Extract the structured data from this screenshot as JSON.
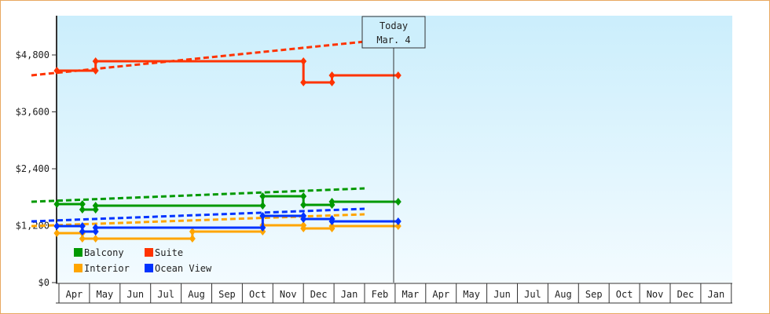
{
  "chart_data": {
    "type": "line",
    "title": "",
    "xlabel": "",
    "ylabel": "",
    "ylim": [
      0,
      5600
    ],
    "yticks": [
      "$0",
      "$1,200",
      "$2,400",
      "$3,600",
      "$4,800"
    ],
    "ytick_values": [
      0,
      1200,
      2400,
      3600,
      4800
    ],
    "xticks": [
      "Apr",
      "May",
      "Jun",
      "Jul",
      "Aug",
      "Sep",
      "Oct",
      "Nov",
      "Dec",
      "Jan",
      "Feb",
      "Mar",
      "Apr",
      "May",
      "Jun",
      "Jul",
      "Aug",
      "Sep",
      "Oct",
      "Nov",
      "Dec",
      "Jan"
    ],
    "grid": false,
    "legend": "bottom-left",
    "today": {
      "line1": "Today",
      "line2": "Mar. 4",
      "date": "Mar 4"
    },
    "series": [
      {
        "name": "Balcony",
        "color": "#009900",
        "history": [
          [
            "Mar 29",
            1655
          ],
          [
            "Apr 24",
            1655
          ],
          [
            "Apr 24",
            1540
          ],
          [
            "May 7",
            1540
          ],
          [
            "May 7",
            1622
          ],
          [
            "Oct 21",
            1622
          ],
          [
            "Oct 21",
            1821
          ],
          [
            "Dec 1",
            1821
          ],
          [
            "Dec 1",
            1639
          ],
          [
            "Dec 29",
            1639
          ],
          [
            "Dec 29",
            1705
          ],
          [
            "Mar 4",
            1705
          ]
        ],
        "forecast": [
          [
            "Mar 4",
            1705
          ],
          [
            "Feb 1",
            1986
          ]
        ]
      },
      {
        "name": "Suite",
        "color": "#ff3300",
        "history": [
          [
            "Mar 29",
            4470
          ],
          [
            "May 7",
            4470
          ],
          [
            "May 7",
            4668
          ],
          [
            "Dec 1",
            4668
          ],
          [
            "Dec 1",
            4221
          ],
          [
            "Dec 29",
            4221
          ],
          [
            "Dec 29",
            4370
          ],
          [
            "Mar 4",
            4370
          ]
        ],
        "forecast": [
          [
            "Mar 4",
            4370
          ],
          [
            "Feb 1",
            5081
          ]
        ]
      },
      {
        "name": "Interior",
        "color": "#ffa500",
        "history": [
          [
            "Mar 29",
            1043
          ],
          [
            "Apr 24",
            1043
          ],
          [
            "Apr 24",
            927
          ],
          [
            "May 7",
            927
          ],
          [
            "Aug 12",
            927
          ],
          [
            "Aug 12",
            1076
          ],
          [
            "Oct 21",
            1076
          ],
          [
            "Oct 21",
            1208
          ],
          [
            "Dec 1",
            1208
          ],
          [
            "Dec 1",
            1142
          ],
          [
            "Dec 29",
            1142
          ],
          [
            "Dec 29",
            1192
          ],
          [
            "Mar 4",
            1192
          ]
        ],
        "forecast": [
          [
            "Mar 4",
            1192
          ],
          [
            "Feb 1",
            1440
          ]
        ]
      },
      {
        "name": "Ocean View",
        "color": "#0033ff",
        "history": [
          [
            "Mar 29",
            1192
          ],
          [
            "Apr 24",
            1192
          ],
          [
            "Apr 24",
            1076
          ],
          [
            "May 7",
            1076
          ],
          [
            "May 7",
            1159
          ],
          [
            "Oct 21",
            1159
          ],
          [
            "Oct 21",
            1407
          ],
          [
            "Dec 1",
            1407
          ],
          [
            "Dec 1",
            1341
          ],
          [
            "Dec 29",
            1341
          ],
          [
            "Dec 29",
            1291
          ],
          [
            "Mar 4",
            1291
          ]
        ],
        "forecast": [
          [
            "Mar 4",
            1291
          ],
          [
            "Feb 1",
            1556
          ]
        ]
      }
    ]
  }
}
